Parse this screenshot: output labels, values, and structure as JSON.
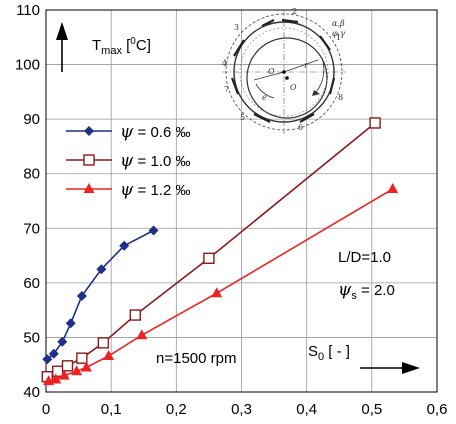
{
  "chart_data": {
    "type": "line",
    "xlim": [
      0,
      0.6
    ],
    "ylim": [
      40,
      110
    ],
    "xticks": [
      0,
      0.1,
      0.2,
      0.3,
      0.4,
      0.5,
      0.6
    ],
    "xtick_labels": [
      "0",
      "0,1",
      "0,2",
      "0,3",
      "0,4",
      "0,5",
      "0,6"
    ],
    "yticks": [
      40,
      50,
      60,
      70,
      80,
      90,
      100,
      110
    ],
    "ytick_labels": [
      "40",
      "50",
      "60",
      "70",
      "80",
      "90",
      "100",
      "110"
    ],
    "grid": true,
    "legend_position": "upper-left",
    "ylabel": {
      "prefix": "T",
      "sub": "max",
      "unit_open": " [",
      "unit_sup": "0",
      "unit_close": "C]"
    },
    "xlabel": {
      "prefix": "S",
      "sub": "0",
      "suffix": " [ - ]"
    },
    "series": [
      {
        "name": "ψ = 0.6 ‰",
        "legend_value": " = 0.6 ",
        "color": "#1f2f8a",
        "marker": "diamond",
        "x": [
          0.002,
          0.012,
          0.025,
          0.038,
          0.055,
          0.085,
          0.12,
          0.165
        ],
        "y": [
          46.0,
          47.0,
          49.2,
          52.6,
          57.6,
          62.5,
          66.8,
          69.6
        ]
      },
      {
        "name": "ψ = 1.0 ‰",
        "legend_value": " = 1.0 ",
        "color": "#8b1a1a",
        "marker": "square-open",
        "x": [
          0.002,
          0.018,
          0.033,
          0.055,
          0.088,
          0.137,
          0.25,
          0.505
        ],
        "y": [
          42.8,
          43.8,
          44.8,
          46.2,
          49.0,
          54.1,
          64.5,
          89.3
        ]
      },
      {
        "name": "ψ = 1.2 ‰",
        "legend_value": " = 1.2 ",
        "color": "#ee2222",
        "marker": "triangle",
        "x": [
          0.004,
          0.015,
          0.028,
          0.047,
          0.062,
          0.096,
          0.147,
          0.262,
          0.532
        ],
        "y": [
          42.0,
          42.3,
          43.0,
          43.8,
          44.5,
          46.6,
          50.4,
          58.1,
          77.2
        ]
      }
    ],
    "annotations": {
      "ld": "L/D=1.0",
      "psis_rest": " = 2.0",
      "speed": "n=1500 rpm"
    }
  },
  "diagram": {
    "labels": [
      "1",
      "2",
      "3",
      "4",
      "5",
      "6",
      "7",
      "8",
      "O",
      "O",
      "e",
      "r",
      "α,β",
      "φ,γ"
    ],
    "description_hidden": ""
  },
  "symbols": {
    "psi": "ψ",
    "permil": "‰",
    "psi_sub": "s"
  }
}
